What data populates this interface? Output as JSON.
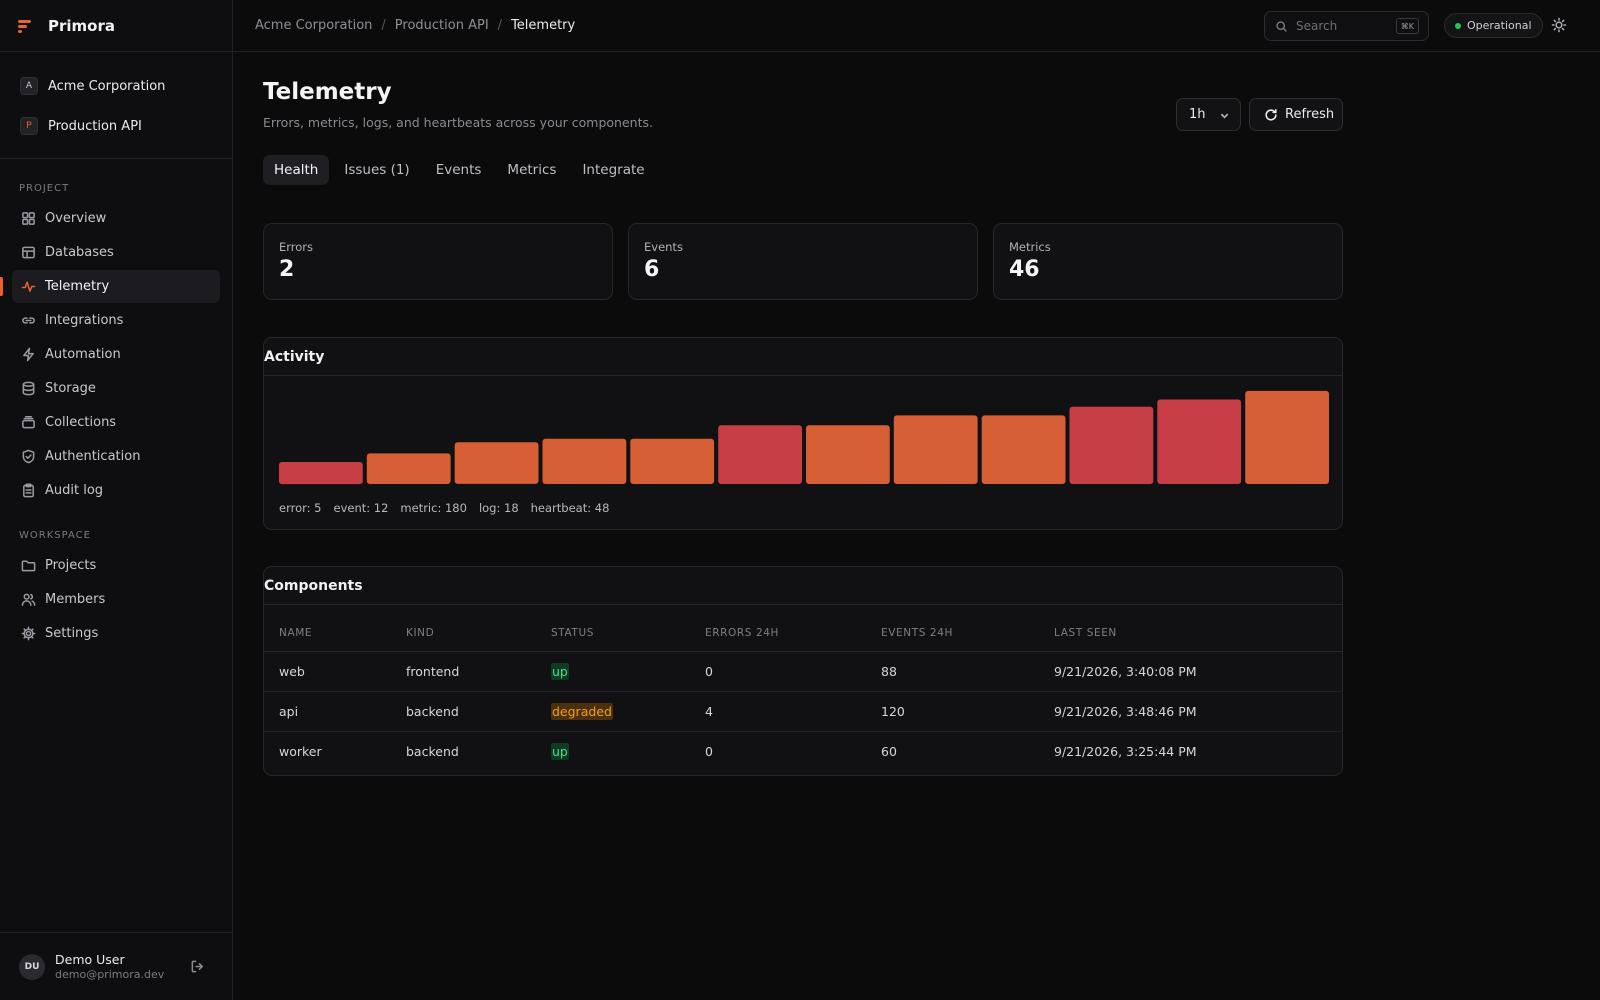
{
  "brand": {
    "name": "Primora",
    "accent": "#e8622c"
  },
  "context": {
    "org": {
      "initial": "A",
      "name": "Acme Corporation"
    },
    "project": {
      "initial": "P",
      "name": "Production API"
    }
  },
  "sidebar": {
    "project_label": "PROJECT",
    "project_items": [
      {
        "label": "Overview",
        "icon": "grid-icon"
      },
      {
        "label": "Databases",
        "icon": "table-icon"
      },
      {
        "label": "Telemetry",
        "icon": "activity-icon",
        "active": true
      },
      {
        "label": "Integrations",
        "icon": "link-icon"
      },
      {
        "label": "Automation",
        "icon": "bolt-icon"
      },
      {
        "label": "Storage",
        "icon": "database-icon"
      },
      {
        "label": "Collections",
        "icon": "stack-icon"
      },
      {
        "label": "Authentication",
        "icon": "shield-icon"
      },
      {
        "label": "Audit log",
        "icon": "clipboard-icon"
      }
    ],
    "workspace_label": "WORKSPACE",
    "workspace_items": [
      {
        "label": "Projects",
        "icon": "folder-icon"
      },
      {
        "label": "Members",
        "icon": "users-icon"
      },
      {
        "label": "Settings",
        "icon": "gear-icon"
      }
    ]
  },
  "user": {
    "initials": "DU",
    "name": "Demo User",
    "email": "demo@primora.dev"
  },
  "topbar": {
    "breadcrumbs": [
      "Acme Corporation",
      "Production API",
      "Telemetry"
    ],
    "search_placeholder": "Search",
    "search_shortcut": "⌘K",
    "status": "Operational",
    "status_color": "#22c55e"
  },
  "page": {
    "title": "Telemetry",
    "subtitle": "Errors, metrics, logs, and heartbeats across your components.",
    "range": "1h",
    "refresh_label": "Refresh"
  },
  "tabs": [
    "Health",
    "Issues (1)",
    "Events",
    "Metrics",
    "Integrate"
  ],
  "stats": [
    {
      "label": "Errors",
      "value": "2"
    },
    {
      "label": "Events",
      "value": "6"
    },
    {
      "label": "Metrics",
      "value": "46"
    }
  ],
  "activity": {
    "title": "Activity",
    "legend": [
      "error: 5",
      "event: 12",
      "metric: 180",
      "log: 18",
      "heartbeat: 48"
    ]
  },
  "chart_data": {
    "type": "bar",
    "title": "Activity",
    "values": [
      18,
      25,
      34,
      37,
      37,
      48,
      48,
      56,
      56,
      63,
      69,
      76
    ],
    "kinds": [
      "error",
      "normal",
      "normal",
      "normal",
      "normal",
      "error",
      "normal",
      "normal",
      "normal",
      "error",
      "error",
      "normal"
    ],
    "colors": {
      "error": "#c73e47",
      "normal": "#d65f35"
    },
    "ylim": [
      0,
      80
    ]
  },
  "components": {
    "title": "Components",
    "columns": [
      "NAME",
      "KIND",
      "STATUS",
      "ERRORS 24H",
      "EVENTS 24H",
      "LAST SEEN"
    ],
    "rows": [
      {
        "name": "web",
        "kind": "frontend",
        "status": "up",
        "errors": "0",
        "events": "88",
        "last_seen": "9/21/2026, 3:40:08 PM"
      },
      {
        "name": "api",
        "kind": "backend",
        "status": "degraded",
        "errors": "4",
        "events": "120",
        "last_seen": "9/21/2026, 3:48:46 PM"
      },
      {
        "name": "worker",
        "kind": "backend",
        "status": "up",
        "errors": "0",
        "events": "60",
        "last_seen": "9/21/2026, 3:25:44 PM"
      }
    ]
  }
}
